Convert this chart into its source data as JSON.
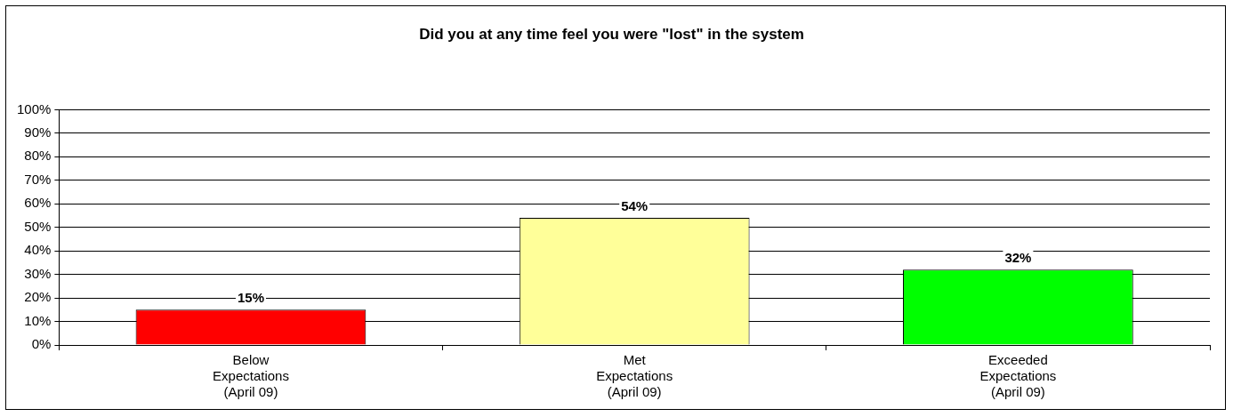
{
  "chart_data": {
    "type": "bar",
    "title": "Did you at any time feel you were \"lost\" in the system",
    "categories": [
      "Below\nExpectations\n(April 09)",
      "Met\nExpectations\n(April 09)",
      "Exceeded\nExpectations\n(April 09)"
    ],
    "values": [
      15,
      54,
      32
    ],
    "colors": [
      "#ff0000",
      "#ffff99",
      "#00ff00"
    ],
    "value_labels": [
      "15%",
      "54%",
      "32%"
    ],
    "ylim": [
      0,
      100
    ],
    "yticks": [
      {
        "value": 0,
        "label": "0%"
      },
      {
        "value": 10,
        "label": "10%"
      },
      {
        "value": 20,
        "label": "20%"
      },
      {
        "value": 30,
        "label": "30%"
      },
      {
        "value": 40,
        "label": "40%"
      },
      {
        "value": 50,
        "label": "50%"
      },
      {
        "value": 60,
        "label": "60%"
      },
      {
        "value": 70,
        "label": "70%"
      },
      {
        "value": 80,
        "label": "80%"
      },
      {
        "value": 90,
        "label": "90%"
      },
      {
        "value": 100,
        "label": "100%"
      }
    ],
    "grid": "y",
    "legend": false
  }
}
